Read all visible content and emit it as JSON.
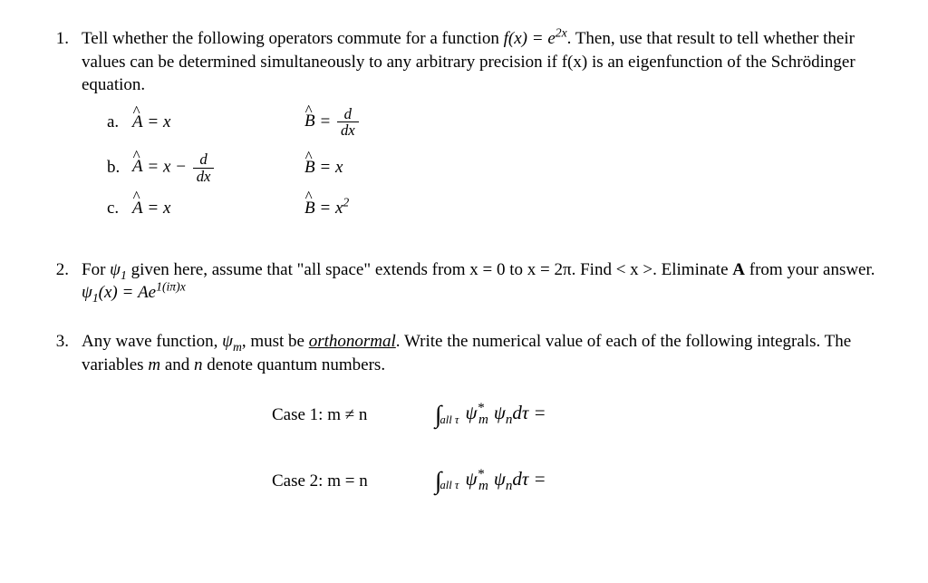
{
  "problems": {
    "p1": {
      "num": "1.",
      "text_parts": {
        "t1": "Tell whether the following operators commute for a function ",
        "fx_eq": "f(x) = e",
        "fx_sup": "2x",
        "t2": ". Then, use that result to tell whether their values can be determined simultaneously to any arbitrary precision if f(x) is an eigenfunction of the Schrödinger equation."
      },
      "sub": {
        "a": {
          "label": "a.",
          "A_lhs": "Â = x",
          "B_lhs_pre": "B̂ = ",
          "frac_num": "d",
          "frac_den": "dx"
        },
        "b": {
          "label": "b.",
          "A_lhs_pre": "Â = x − ",
          "frac_num": "d",
          "frac_den": "dx",
          "B_lhs": "B̂ = x"
        },
        "c": {
          "label": "c.",
          "A_lhs": "Â = x",
          "B_lhs": "B̂ = x",
          "B_sup": "2"
        }
      }
    },
    "p2": {
      "num": "2.",
      "t1": "For ",
      "psi": "ψ",
      "psi_sub": "1",
      "t2": " given here, assume that \"all space\" extends from x = 0 to x = 2π. Find < x >. Eliminate ",
      "bold_A": "A",
      "t3": " from your answer.  ",
      "eq_lhs_psi": "ψ",
      "eq_lhs_sub": "1",
      "eq_lhs_x": "(x) = Ae",
      "eq_sup": "1(iπ)x"
    },
    "p3": {
      "num": "3.",
      "t1": "Any wave function, ",
      "psi": "ψ",
      "psi_sub": "m",
      "t2": ", must be ",
      "ortho": "orthonormal",
      "t3": ". Write the numerical value of each of the following integrals. The variables ",
      "it_m": "m",
      "t4": " and ",
      "it_n": "n",
      "t5": " denote quantum numbers.",
      "cases": {
        "c1": {
          "label": "Case 1: m ≠ n",
          "int_sub": "all τ",
          "psi_m": "ψ",
          "m_sup": "*",
          "m_sub": "m",
          "psi_n": "ψ",
          "n_sub": "n",
          "dtau": "dτ ="
        },
        "c2": {
          "label": "Case 2: m = n",
          "int_sub": "all τ",
          "psi_m": "ψ",
          "m_sup": "*",
          "m_sub": "m",
          "psi_n": "ψ",
          "n_sub": "n",
          "dtau": "dτ ="
        }
      }
    }
  }
}
